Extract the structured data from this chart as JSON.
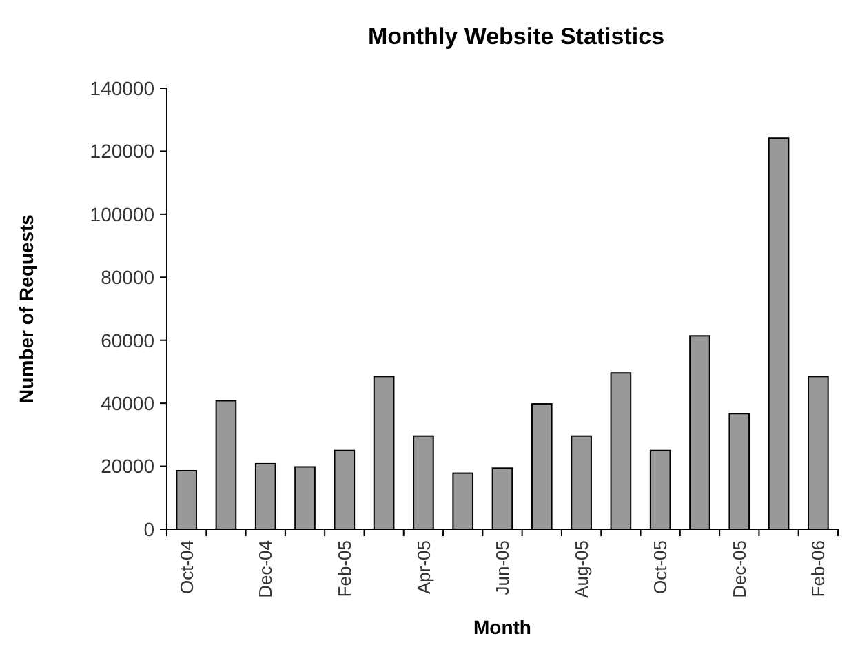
{
  "chart_data": {
    "type": "bar",
    "title": "Monthly Website Statistics",
    "xlabel": "Month",
    "ylabel": "Number of Requests",
    "categories": [
      "Oct-04",
      null,
      "Dec-04",
      null,
      "Feb-05",
      null,
      "Apr-05",
      null,
      "Jun-05",
      null,
      "Aug-05",
      null,
      "Oct-05",
      null,
      "Dec-05",
      null,
      "Feb-06"
    ],
    "values": [
      18600,
      40800,
      20800,
      19800,
      25000,
      48500,
      29600,
      17800,
      19400,
      39800,
      29600,
      49600,
      25000,
      61400,
      36700,
      124200,
      48500
    ],
    "color": "#999999",
    "ylim": [
      0,
      140000
    ],
    "yticks": [
      0,
      20000,
      40000,
      60000,
      80000,
      100000,
      120000,
      140000
    ],
    "grid": false
  }
}
